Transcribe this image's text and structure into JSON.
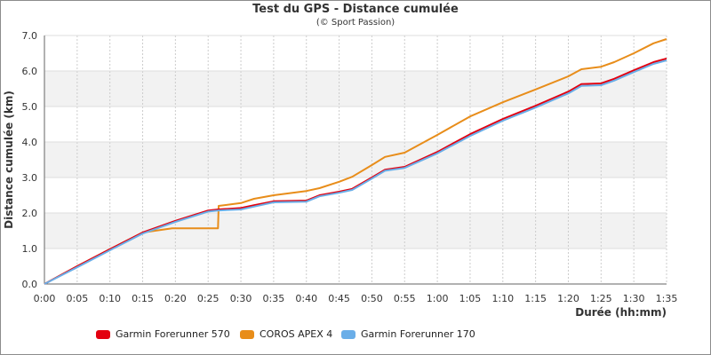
{
  "chart_data": {
    "type": "line",
    "title": "Test du GPS - Distance cumulée",
    "subtitle": "(© Sport Passion)",
    "xlabel": "Durée (hh:mm)",
    "ylabel": "Distance cumulée (km)",
    "xlim": [
      0,
      95
    ],
    "ylim": [
      0,
      7
    ],
    "x_unit": "minutes",
    "x_ticks": [
      "0:00",
      "0:05",
      "0:10",
      "0:15",
      "0:20",
      "0:25",
      "0:30",
      "0:35",
      "0:40",
      "0:45",
      "0:50",
      "0:55",
      "1:00",
      "1:05",
      "1:10",
      "1:15",
      "1:20",
      "1:25",
      "1:30",
      "1:35"
    ],
    "y_ticks": [
      "0.0",
      "1.0",
      "2.0",
      "3.0",
      "4.0",
      "5.0",
      "6.0",
      "7.0"
    ],
    "grid": "horizontal bands",
    "legend_position": "bottom",
    "series": [
      {
        "name": "Garmin Forerunner 570",
        "color": "#e3000f",
        "x": [
          0,
          5,
          10,
          15,
          20,
          25,
          26.5,
          30,
          32,
          35,
          40,
          42,
          45,
          47,
          50,
          52,
          55,
          60,
          65,
          70,
          75,
          80,
          82,
          85,
          87,
          90,
          93,
          95
        ],
        "y": [
          0,
          0.5,
          0.98,
          1.45,
          1.78,
          2.07,
          2.1,
          2.14,
          2.22,
          2.33,
          2.35,
          2.5,
          2.6,
          2.68,
          3.0,
          3.22,
          3.3,
          3.72,
          4.22,
          4.65,
          5.02,
          5.42,
          5.63,
          5.65,
          5.78,
          6.02,
          6.25,
          6.35
        ]
      },
      {
        "name": "COROS APEX 4",
        "color": "#e88d1a",
        "x": [
          0,
          5,
          10,
          15,
          19.5,
          26.5,
          26.6,
          30,
          32,
          35,
          40,
          42,
          45,
          47,
          50,
          52,
          55,
          60,
          65,
          70,
          75,
          80,
          82,
          85,
          87,
          90,
          93,
          95
        ],
        "y": [
          0,
          0.5,
          0.98,
          1.45,
          1.57,
          1.57,
          2.2,
          2.28,
          2.4,
          2.5,
          2.62,
          2.7,
          2.88,
          3.02,
          3.35,
          3.58,
          3.7,
          4.2,
          4.72,
          5.12,
          5.48,
          5.85,
          6.05,
          6.12,
          6.25,
          6.5,
          6.78,
          6.9
        ]
      },
      {
        "name": "Garmin Forerunner 170",
        "color": "#6aaee8",
        "x": [
          0,
          5,
          10,
          15,
          20,
          25,
          26.5,
          30,
          32,
          35,
          40,
          42,
          45,
          47,
          50,
          52,
          55,
          60,
          65,
          70,
          75,
          80,
          82,
          85,
          87,
          90,
          93,
          95
        ],
        "y": [
          0,
          0.47,
          0.95,
          1.42,
          1.75,
          2.04,
          2.07,
          2.1,
          2.18,
          2.3,
          2.32,
          2.47,
          2.57,
          2.65,
          2.97,
          3.19,
          3.27,
          3.68,
          4.17,
          4.6,
          4.97,
          5.37,
          5.58,
          5.6,
          5.73,
          5.97,
          6.2,
          6.3
        ]
      }
    ]
  }
}
